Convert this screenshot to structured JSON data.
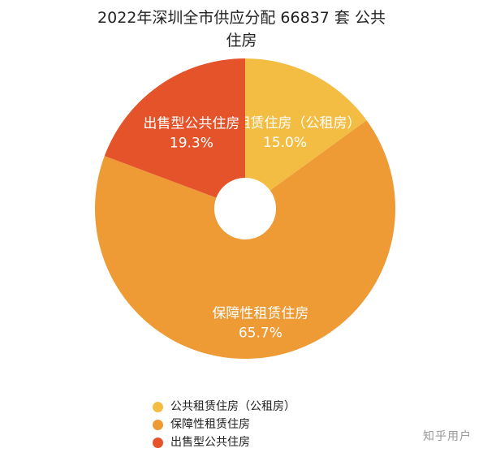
{
  "chart_data": {
    "type": "pie",
    "title_line1": "2022年深圳全市供应分配 66837 套 公共",
    "title_line2": "住房",
    "slices": [
      {
        "name": "公共租赁住房（公租房）",
        "value": 15.0,
        "label": "15.0%",
        "color": "#F3BD44"
      },
      {
        "name": "保障性租赁住房",
        "value": 65.7,
        "label": "65.7%",
        "color": "#EE9A35"
      },
      {
        "name": "出售型公共住房",
        "value": 19.3,
        "label": "19.3%",
        "color": "#E5532B"
      }
    ],
    "legend_position": "bottom"
  },
  "watermark": "知乎用户"
}
